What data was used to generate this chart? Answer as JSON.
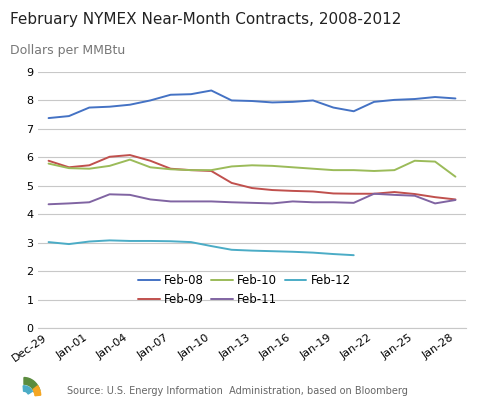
{
  "title": "February NYMEX Near-Month Contracts, 2008-2012",
  "subtitle": "Dollars per MMBtu",
  "source": "Source: U.S. Energy Information  Administration, based on Bloomberg",
  "x_labels": [
    "Dec-29",
    "Jan-01",
    "Jan-04",
    "Jan-07",
    "Jan-10",
    "Jan-13",
    "Jan-16",
    "Jan-19",
    "Jan-22",
    "Jan-25",
    "Jan-28"
  ],
  "series": {
    "Feb-08": {
      "color": "#4472C4",
      "values": [
        7.38,
        7.45,
        7.75,
        7.78,
        7.85,
        8.0,
        8.2,
        8.22,
        8.35,
        8.0,
        7.98,
        7.93,
        7.95,
        8.0,
        7.75,
        7.62,
        7.95,
        8.02,
        8.05,
        8.12,
        8.07
      ]
    },
    "Feb-09": {
      "color": "#C0504D",
      "values": [
        5.88,
        5.65,
        5.72,
        6.02,
        6.08,
        5.88,
        5.6,
        5.55,
        5.52,
        5.1,
        4.92,
        4.85,
        4.82,
        4.8,
        4.73,
        4.72,
        4.72,
        4.78,
        4.71,
        4.6,
        4.52
      ]
    },
    "Feb-10": {
      "color": "#9BBB59",
      "values": [
        5.78,
        5.62,
        5.6,
        5.7,
        5.92,
        5.65,
        5.58,
        5.55,
        5.55,
        5.68,
        5.72,
        5.7,
        5.65,
        5.6,
        5.55,
        5.55,
        5.52,
        5.55,
        5.88,
        5.85,
        5.32
      ]
    },
    "Feb-11": {
      "color": "#8064A2",
      "values": [
        4.35,
        4.38,
        4.42,
        4.7,
        4.68,
        4.52,
        4.45,
        4.45,
        4.45,
        4.42,
        4.4,
        4.38,
        4.45,
        4.42,
        4.42,
        4.4,
        4.72,
        4.68,
        4.65,
        4.38,
        4.5
      ]
    },
    "Feb-12": {
      "color": "#4BACC6",
      "values": [
        3.02,
        2.95,
        3.04,
        3.08,
        3.06,
        3.06,
        3.05,
        3.02,
        2.88,
        2.75,
        2.72,
        2.7,
        2.68,
        2.65,
        2.6,
        2.56,
        null,
        null,
        null,
        null,
        null
      ]
    }
  },
  "ylim": [
    0,
    9
  ],
  "yticks": [
    0,
    1,
    2,
    3,
    4,
    5,
    6,
    7,
    8,
    9
  ],
  "background_color": "#ffffff",
  "grid_color": "#C8C8C8",
  "title_fontsize": 11,
  "subtitle_fontsize": 9,
  "legend_fontsize": 8.5,
  "tick_fontsize": 8
}
